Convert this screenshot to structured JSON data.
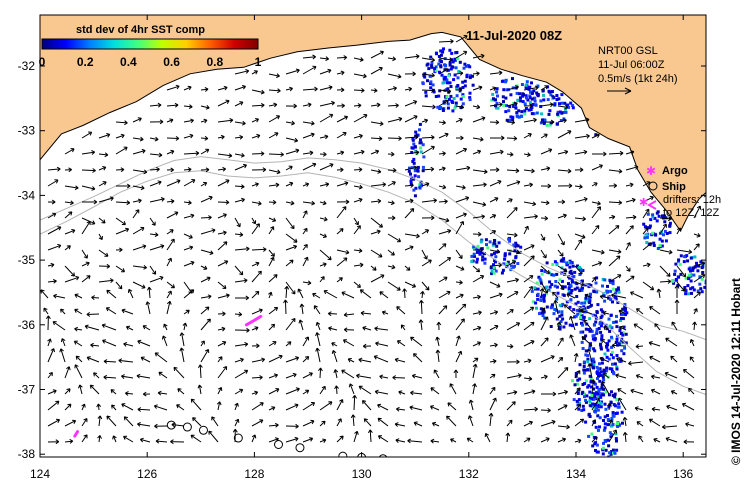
{
  "map": {
    "title": "11-Jul-2020 08Z",
    "credit": "© IMOS 14-Jul-2020 12:11 Hobart",
    "lon_range": [
      124,
      136.5
    ],
    "lat_range": [
      -38.1,
      -31.3
    ],
    "x_ticks": [
      {
        "value": 124,
        "label": "124"
      },
      {
        "value": 126,
        "label": "126"
      },
      {
        "value": 128,
        "label": "128"
      },
      {
        "value": 130,
        "label": "130"
      },
      {
        "value": 132,
        "label": "132"
      },
      {
        "value": 134,
        "label": "134"
      },
      {
        "value": 136,
        "label": "136"
      }
    ],
    "y_ticks": [
      {
        "value": -32,
        "label": "-32"
      },
      {
        "value": -33,
        "label": "-33"
      },
      {
        "value": -34,
        "label": "-34"
      },
      {
        "value": -35,
        "label": "-35"
      },
      {
        "value": -36,
        "label": "-36"
      },
      {
        "value": -37,
        "label": "-37"
      },
      {
        "value": -38,
        "label": "-38"
      }
    ],
    "colors": {
      "land": "#f9c891",
      "sea": "#ffffff",
      "coast": "#000000",
      "bathymetry": "#b4b4b4",
      "argo": "#ff33ff",
      "drifter": "#ff33ff"
    },
    "colorbar": {
      "title": "std dev of 4hr SST comp",
      "ticks": [
        "0",
        "0.2",
        "0.4",
        "0.6",
        "0.8",
        "1"
      ],
      "stops": [
        "#000080",
        "#0000ff",
        "#0080ff",
        "#00e0e0",
        "#40ff80",
        "#c0ff00",
        "#ffd000",
        "#ff6000",
        "#d00000",
        "#800000"
      ]
    },
    "velocity_info": {
      "line1": "NRT00 GSL",
      "line2": "11-Jul 06:00Z",
      "line3": "0.5m/s (1kt 24h)"
    },
    "legend": {
      "argo": "Argo",
      "ship": "Ship",
      "drifters_line1": "drifters: 12h",
      "drifters_line2": "to 12Z, 12Z"
    },
    "coastline": [
      [
        124.0,
        -33.45
      ],
      [
        124.4,
        -33.05
      ],
      [
        124.8,
        -32.92
      ],
      [
        125.3,
        -32.72
      ],
      [
        125.8,
        -32.55
      ],
      [
        126.3,
        -32.3
      ],
      [
        126.8,
        -32.12
      ],
      [
        127.3,
        -32.05
      ],
      [
        127.8,
        -32.02
      ],
      [
        128.3,
        -31.88
      ],
      [
        128.8,
        -31.78
      ],
      [
        129.4,
        -31.72
      ],
      [
        129.9,
        -31.68
      ],
      [
        130.5,
        -31.62
      ],
      [
        130.9,
        -31.6
      ],
      [
        131.3,
        -31.5
      ],
      [
        131.5,
        -31.48
      ],
      [
        131.85,
        -31.55
      ],
      [
        132.2,
        -31.9
      ],
      [
        132.6,
        -32.05
      ],
      [
        133.0,
        -32.15
      ],
      [
        133.45,
        -32.25
      ],
      [
        133.75,
        -32.4
      ],
      [
        134.1,
        -32.65
      ],
      [
        134.25,
        -32.95
      ],
      [
        134.6,
        -33.12
      ],
      [
        135.0,
        -33.25
      ],
      [
        135.15,
        -33.6
      ],
      [
        135.4,
        -33.95
      ],
      [
        135.7,
        -34.25
      ],
      [
        135.95,
        -34.55
      ],
      [
        136.1,
        -34.3
      ],
      [
        136.3,
        -34.05
      ],
      [
        136.5,
        -33.9
      ]
    ],
    "isobath_200": [
      [
        124.0,
        -34.38
      ],
      [
        124.5,
        -34.2
      ],
      [
        125.0,
        -34.02
      ],
      [
        125.5,
        -33.82
      ],
      [
        126.0,
        -33.62
      ],
      [
        126.5,
        -33.46
      ],
      [
        127.0,
        -33.4
      ],
      [
        127.5,
        -33.45
      ],
      [
        128.0,
        -33.5
      ],
      [
        128.5,
        -33.48
      ],
      [
        129.0,
        -33.42
      ],
      [
        129.5,
        -33.45
      ],
      [
        130.0,
        -33.5
      ],
      [
        130.5,
        -33.6
      ],
      [
        131.0,
        -33.75
      ],
      [
        131.5,
        -33.95
      ],
      [
        132.0,
        -34.25
      ],
      [
        132.5,
        -34.6
      ],
      [
        133.0,
        -34.9
      ],
      [
        133.5,
        -35.12
      ],
      [
        134.0,
        -35.3
      ],
      [
        134.5,
        -35.5
      ],
      [
        135.0,
        -35.75
      ],
      [
        135.5,
        -36.0
      ],
      [
        136.0,
        -36.1
      ],
      [
        136.5,
        -36.25
      ]
    ],
    "isobath_2000": [
      [
        124.0,
        -34.6
      ],
      [
        124.5,
        -34.4
      ],
      [
        125.0,
        -34.18
      ],
      [
        125.5,
        -33.95
      ],
      [
        126.0,
        -33.78
      ],
      [
        126.5,
        -33.65
      ],
      [
        127.0,
        -33.62
      ],
      [
        127.5,
        -33.7
      ],
      [
        128.0,
        -33.73
      ],
      [
        128.5,
        -33.7
      ],
      [
        129.0,
        -33.65
      ],
      [
        129.5,
        -33.72
      ],
      [
        130.0,
        -33.82
      ],
      [
        130.5,
        -33.95
      ],
      [
        131.0,
        -34.12
      ],
      [
        131.5,
        -34.38
      ],
      [
        132.0,
        -34.72
      ],
      [
        132.5,
        -35.0
      ],
      [
        133.0,
        -35.25
      ],
      [
        133.5,
        -35.48
      ],
      [
        134.0,
        -35.7
      ],
      [
        134.5,
        -35.95
      ],
      [
        135.0,
        -36.35
      ],
      [
        135.5,
        -36.72
      ],
      [
        136.0,
        -36.95
      ],
      [
        136.5,
        -37.1
      ]
    ],
    "ship_positions": [
      [
        126.45,
        -37.55
      ],
      [
        126.75,
        -37.58
      ],
      [
        127.05,
        -37.63
      ],
      [
        127.7,
        -37.75
      ],
      [
        128.45,
        -37.85
      ],
      [
        128.85,
        -37.9
      ],
      [
        129.65,
        -38.03
      ],
      [
        130.0,
        -38.05
      ],
      [
        130.4,
        -38.07
      ]
    ],
    "argo_positions": [
      [
        135.25,
        -34.1
      ]
    ],
    "drifter_tracks": [
      [
        [
          127.85,
          -36.0
        ],
        [
          128.0,
          -35.93
        ],
        [
          128.12,
          -35.87
        ]
      ],
      [
        [
          124.65,
          -37.72
        ],
        [
          124.7,
          -37.65
        ]
      ]
    ]
  }
}
